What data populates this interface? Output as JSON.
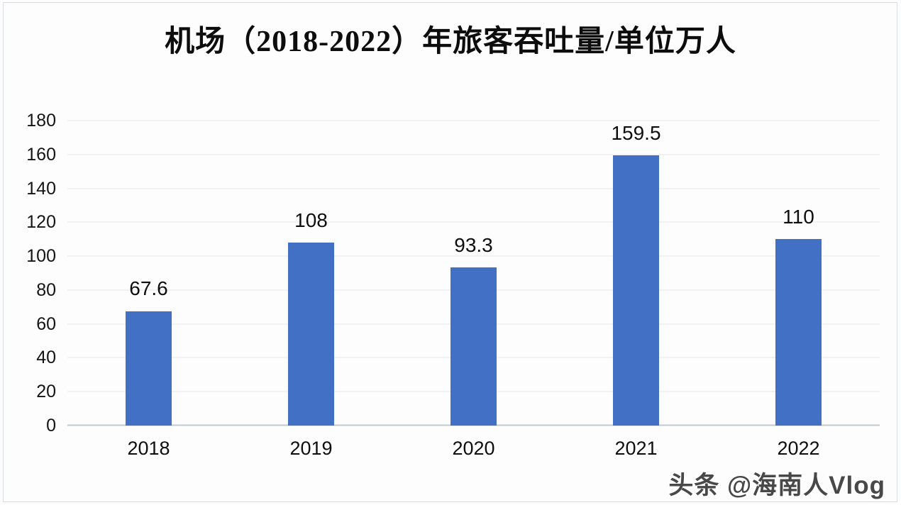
{
  "chart_data": {
    "type": "bar",
    "title": "机场（2018-2022）年旅客吞吐量/单位万人",
    "categories": [
      "2018",
      "2019",
      "2020",
      "2021",
      "2022"
    ],
    "values": [
      67.6,
      108,
      93.3,
      159.5,
      110
    ],
    "value_labels": [
      "67.6",
      "108",
      "93.3",
      "159.5",
      "110"
    ],
    "xlabel": "",
    "ylabel": "",
    "ylim": [
      0,
      180
    ],
    "yticks": [
      0,
      20,
      40,
      60,
      80,
      100,
      120,
      140,
      160,
      180
    ],
    "grid": "horizontal",
    "legend": "none",
    "bar_color": "#4170c4",
    "gridline_color": "#e4e8ec",
    "axis_line_color": "#c3c9cf",
    "tick_label_color": "#141414",
    "data_label_color": "#0e0e0e"
  },
  "watermark": {
    "text": "头条 @海南人Vlog"
  }
}
